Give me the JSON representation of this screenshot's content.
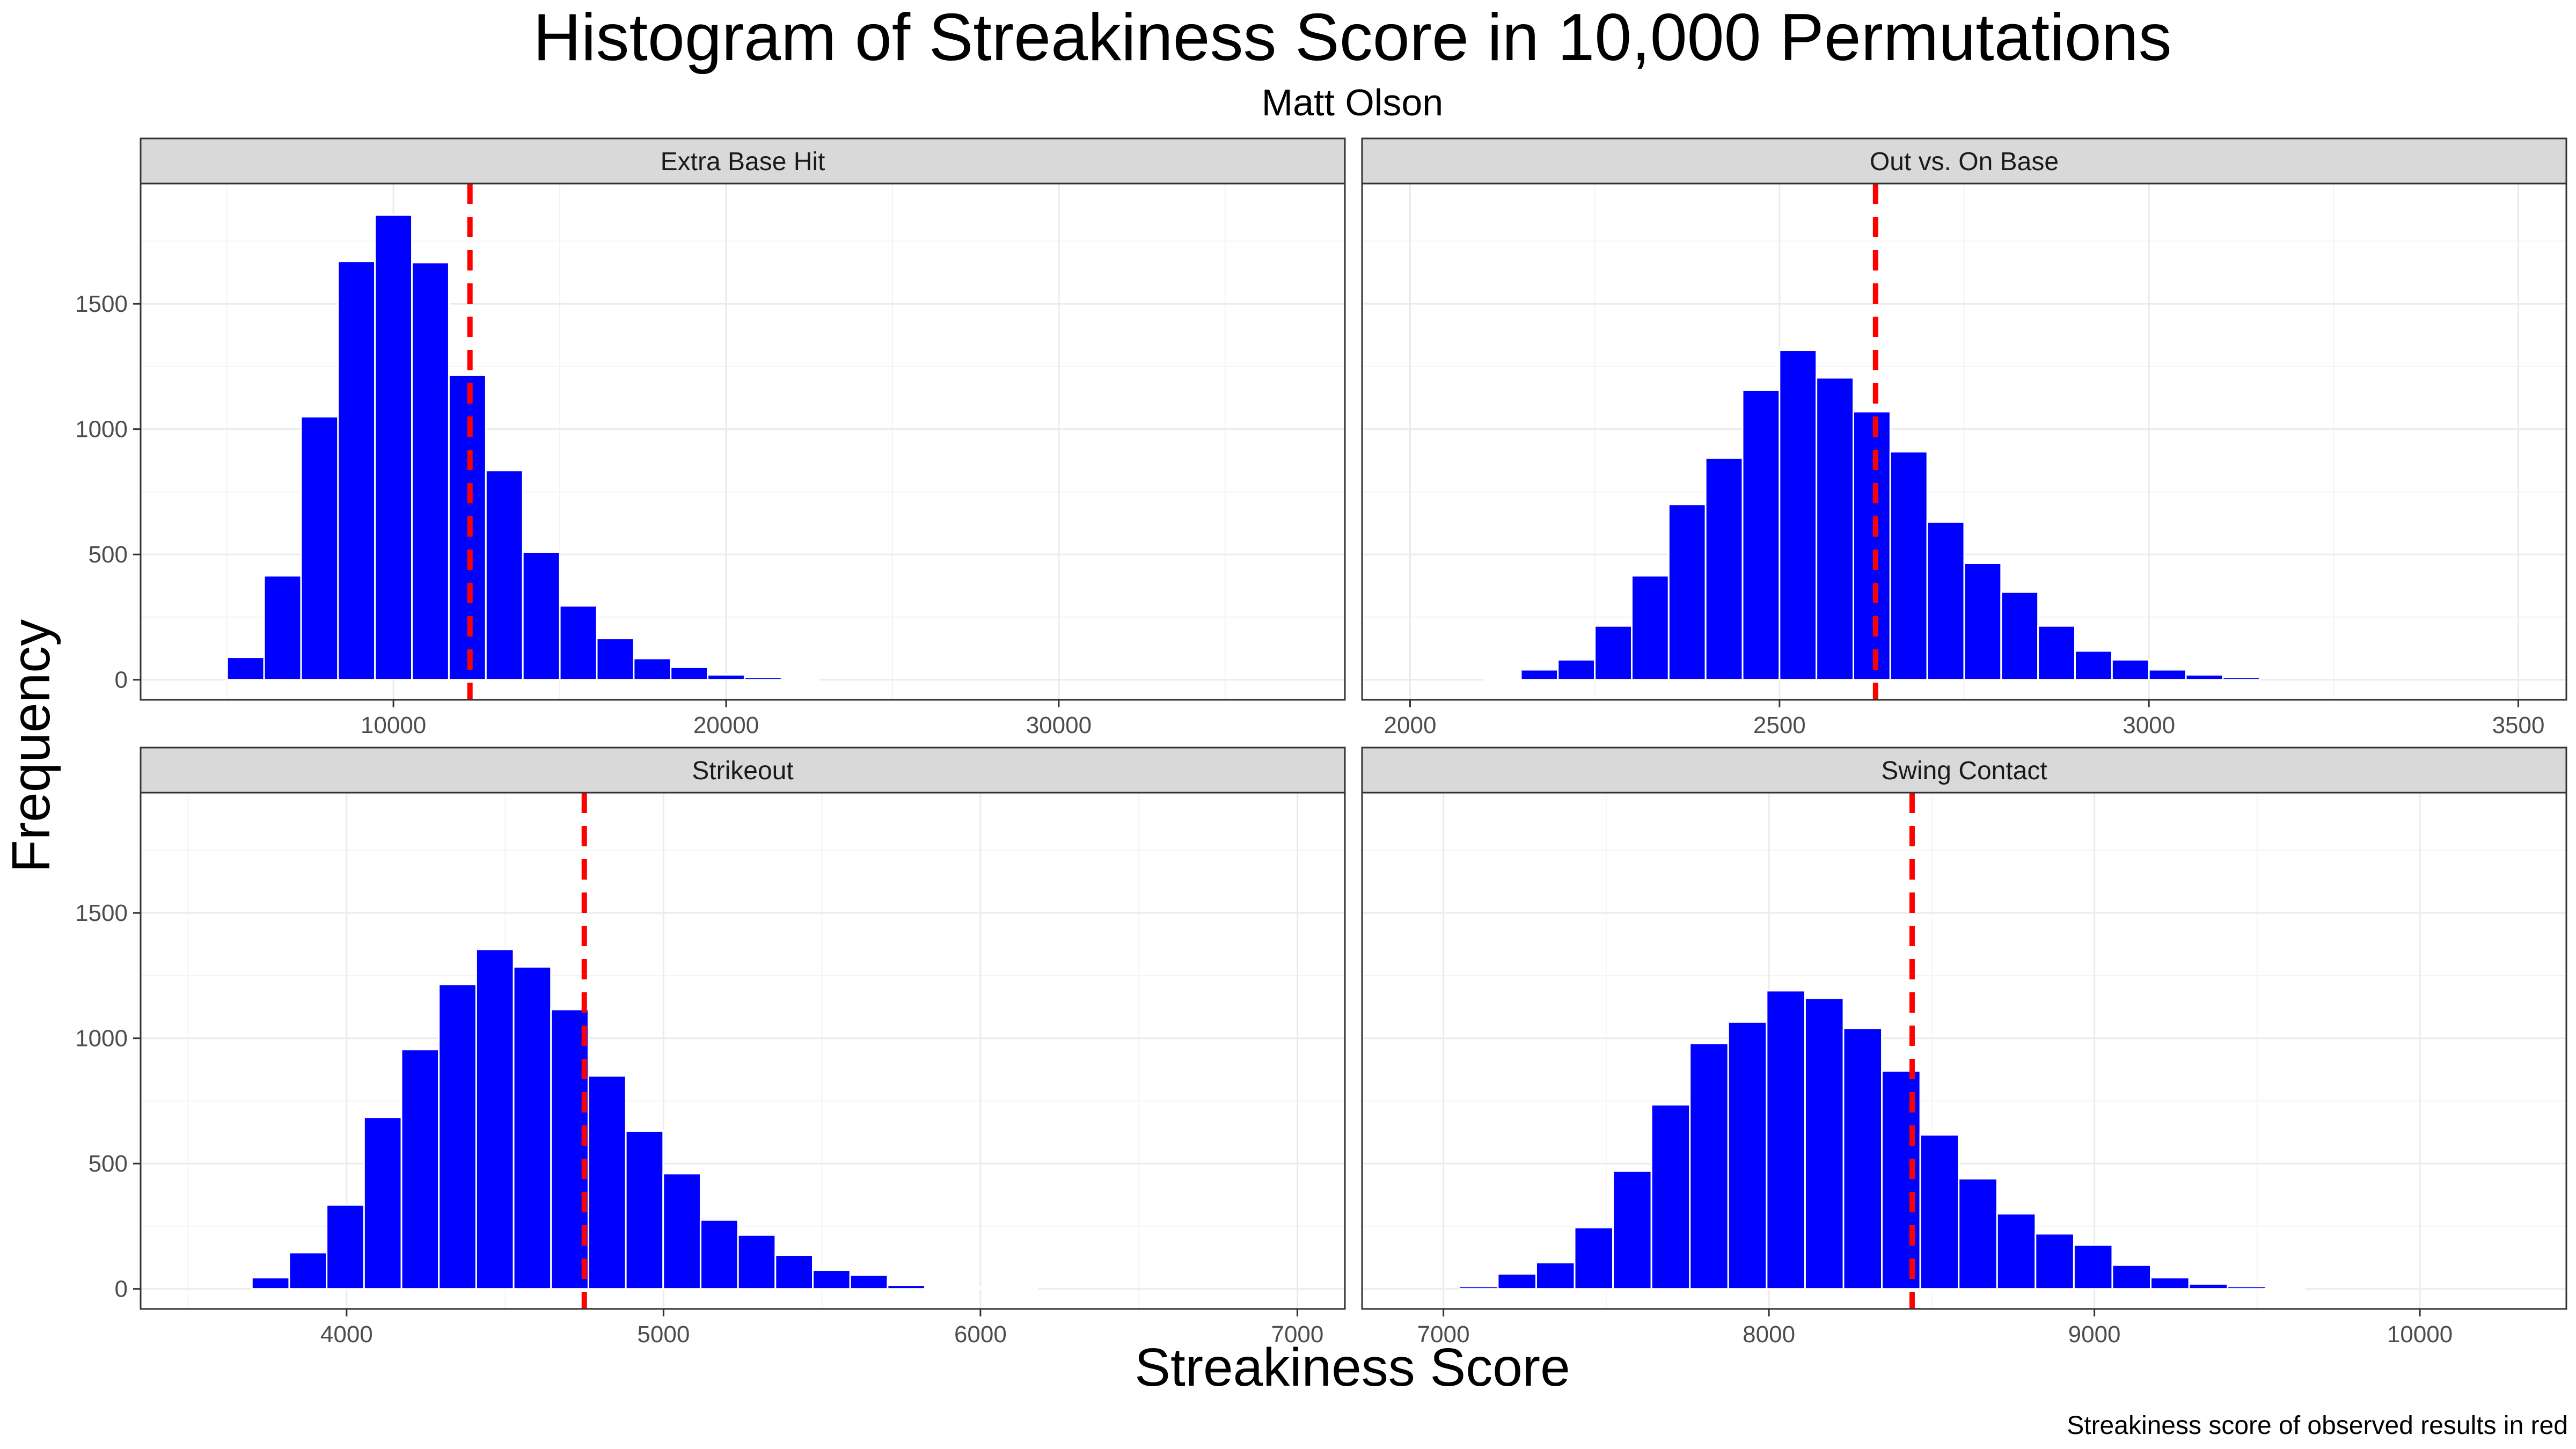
{
  "title": "Histogram of Streakiness Score in 10,000 Permutations",
  "subtitle": "Matt Olson",
  "xlabel": "Streakiness Score",
  "ylabel": "Frequency",
  "caption": "Streakiness score of observed results in red",
  "colors": {
    "bar_fill": "#0000ff",
    "bar_outline": "#ffffff",
    "observed_line": "#ff0000",
    "strip": "#d9d9d9"
  },
  "chart_data": [
    {
      "type": "bar",
      "panel": "Extra Base Hit",
      "ylim": [
        -80,
        1980
      ],
      "y_ticks": [
        0,
        500,
        1000,
        1500
      ],
      "y_tick_labels": [
        "0",
        "500",
        "1000",
        "1500"
      ],
      "xlim": [
        2400,
        38600
      ],
      "x_ticks": [
        10000,
        20000,
        30000
      ],
      "x_tick_labels": [
        "10000",
        "20000",
        "30000"
      ],
      "bin_width": 1111,
      "bin_centers": [
        5556,
        6667,
        7778,
        8889,
        10000,
        11111,
        12222,
        13333,
        14444,
        15556,
        16667,
        17778,
        18889,
        20000,
        21111,
        22222
      ],
      "values": [
        90,
        415,
        1050,
        1670,
        1855,
        1665,
        1215,
        835,
        510,
        295,
        165,
        85,
        50,
        20,
        10,
        5
      ],
      "observed": 12300
    },
    {
      "type": "bar",
      "panel": "Out vs. On Base",
      "ylim": [
        -80,
        1980
      ],
      "y_ticks": [
        0,
        500,
        1000,
        1500
      ],
      "y_tick_labels": [
        "0",
        "500",
        "1000",
        "1500"
      ],
      "xlim": [
        1935,
        3565
      ],
      "x_ticks": [
        2000,
        2500,
        3000,
        3500
      ],
      "x_tick_labels": [
        "2000",
        "2500",
        "3000",
        "3500"
      ],
      "bin_width": 50,
      "bin_centers": [
        2125,
        2175,
        2225,
        2275,
        2325,
        2375,
        2425,
        2475,
        2525,
        2575,
        2625,
        2675,
        2725,
        2775,
        2825,
        2875,
        2925,
        2975,
        3025,
        3075,
        3125
      ],
      "values": [
        5,
        40,
        80,
        215,
        415,
        700,
        885,
        1155,
        1315,
        1205,
        1070,
        910,
        630,
        465,
        350,
        215,
        115,
        80,
        40,
        20,
        10
      ],
      "observed": 2630
    },
    {
      "type": "bar",
      "panel": "Strikeout",
      "ylim": [
        -80,
        1980
      ],
      "y_ticks": [
        0,
        500,
        1000,
        1500
      ],
      "y_tick_labels": [
        "0",
        "500",
        "1000",
        "1500"
      ],
      "xlim": [
        3350,
        7150
      ],
      "x_ticks": [
        4000,
        5000,
        6000,
        7000
      ],
      "x_tick_labels": [
        "4000",
        "5000",
        "6000",
        "7000"
      ],
      "bin_width": 118,
      "bin_centers": [
        3760,
        3878,
        3996,
        4114,
        4232,
        4350,
        4468,
        4586,
        4704,
        4822,
        4940,
        5058,
        5176,
        5294,
        5412,
        5530,
        5648,
        5766,
        5884,
        6002,
        6120
      ],
      "values": [
        45,
        145,
        335,
        685,
        955,
        1215,
        1355,
        1285,
        1115,
        850,
        630,
        460,
        275,
        215,
        135,
        75,
        55,
        15,
        5,
        5,
        5
      ],
      "observed": 4750
    },
    {
      "type": "bar",
      "panel": "Swing Contact",
      "ylim": [
        -80,
        1980
      ],
      "y_ticks": [
        0,
        500,
        1000,
        1500
      ],
      "y_tick_labels": [
        "0",
        "500",
        "1000",
        "1500"
      ],
      "xlim": [
        6750,
        10450
      ],
      "x_ticks": [
        7000,
        8000,
        9000,
        10000
      ],
      "x_tick_labels": [
        "7000",
        "8000",
        "9000",
        "10000"
      ],
      "bin_width": 118,
      "bin_centers": [
        7108,
        7226,
        7344,
        7462,
        7580,
        7698,
        7816,
        7934,
        8052,
        8170,
        8288,
        8406,
        8524,
        8642,
        8760,
        8878,
        8996,
        9114,
        9232,
        9350,
        9468,
        9586
      ],
      "values": [
        10,
        60,
        105,
        245,
        470,
        735,
        980,
        1065,
        1190,
        1160,
        1040,
        870,
        615,
        440,
        300,
        220,
        175,
        95,
        45,
        20,
        10,
        5
      ],
      "observed": 8440
    }
  ]
}
